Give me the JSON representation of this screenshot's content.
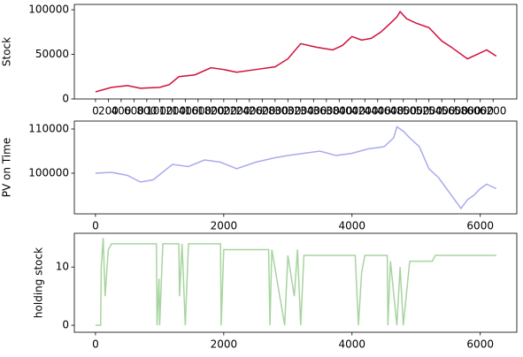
{
  "chart_data": [
    {
      "type": "line",
      "ylabel": "Stock",
      "x": [
        0,
        250,
        500,
        700,
        1000,
        1150,
        1300,
        1550,
        1800,
        2000,
        2200,
        2500,
        2800,
        3000,
        3200,
        3450,
        3700,
        3850,
        4000,
        4150,
        4300,
        4450,
        4600,
        4700,
        4750,
        4850,
        5000,
        5200,
        5400,
        5550,
        5800,
        5950,
        6100,
        6250
      ],
      "series": [
        {
          "color": "#d0103a",
          "values": [
            8000,
            13000,
            15000,
            12000,
            13000,
            16000,
            25000,
            27000,
            35000,
            33000,
            30000,
            33000,
            36000,
            45000,
            62000,
            58000,
            55000,
            60000,
            70000,
            66000,
            68000,
            75000,
            85000,
            92000,
            98000,
            90000,
            85000,
            80000,
            65000,
            58000,
            45000,
            50000,
            55000,
            48000
          ]
        }
      ],
      "xlim": [
        -330,
        6570
      ],
      "ylim": [
        0,
        106000
      ],
      "yticks": [
        0,
        50000,
        100000
      ],
      "xticks": [
        0,
        200,
        400,
        600,
        800,
        1000,
        1200,
        1400,
        1600,
        1800,
        2000,
        2200,
        2400,
        2600,
        2800,
        3000,
        3200,
        3400,
        3600,
        3800,
        4000,
        4200,
        4400,
        4600,
        4800,
        5000,
        5200,
        5400,
        5600,
        5800,
        6000,
        6200
      ]
    },
    {
      "type": "line",
      "ylabel": "PV on Time",
      "x": [
        0,
        250,
        500,
        700,
        900,
        1200,
        1450,
        1700,
        1950,
        2200,
        2500,
        2800,
        3000,
        3250,
        3500,
        3750,
        4000,
        4250,
        4500,
        4650,
        4700,
        4800,
        4900,
        5050,
        5200,
        5350,
        5500,
        5600,
        5700,
        5800,
        5900,
        6000,
        6100,
        6250
      ],
      "series": [
        {
          "color": "#aaaaee",
          "values": [
            100000,
            100200,
            99500,
            98000,
            98500,
            102000,
            101500,
            103000,
            102500,
            101000,
            102500,
            103500,
            104000,
            104500,
            105000,
            104000,
            104500,
            105500,
            106000,
            108000,
            110500,
            109500,
            108000,
            106000,
            101000,
            99000,
            96000,
            94000,
            92000,
            94000,
            95000,
            96500,
            97500,
            96500
          ]
        }
      ],
      "xlim": [
        -330,
        6570
      ],
      "ylim": [
        90800,
        111800
      ],
      "yticks": [
        100000,
        110000
      ],
      "xticks": [
        0,
        2000,
        4000,
        6000
      ]
    },
    {
      "type": "line",
      "ylabel": "holding stock",
      "x": [
        0,
        80,
        90,
        120,
        150,
        200,
        250,
        950,
        960,
        990,
        1000,
        1050,
        1300,
        1310,
        1350,
        1400,
        1450,
        1950,
        1960,
        2000,
        2700,
        2720,
        2750,
        2950,
        3000,
        3100,
        3150,
        3200,
        3250,
        4050,
        4100,
        4150,
        4200,
        4550,
        4560,
        4600,
        4700,
        4750,
        4800,
        4900,
        5250,
        5300,
        6250
      ],
      "series": [
        {
          "color": "#a8d4a0",
          "values": [
            0,
            0,
            10,
            15,
            5,
            13,
            14,
            14,
            0,
            8,
            0,
            14,
            14,
            5,
            14,
            0,
            14,
            14,
            0,
            13,
            13,
            0,
            13,
            0,
            12,
            5,
            13,
            0,
            12,
            12,
            0,
            9,
            12,
            12,
            0,
            11,
            0,
            10,
            0,
            11,
            11,
            12,
            12
          ]
        }
      ],
      "xlim": [
        -330,
        6570
      ],
      "ylim": [
        -1.2,
        15.8
      ],
      "yticks": [
        0,
        10
      ],
      "xticks": [
        0,
        2000,
        4000,
        6000
      ]
    }
  ]
}
